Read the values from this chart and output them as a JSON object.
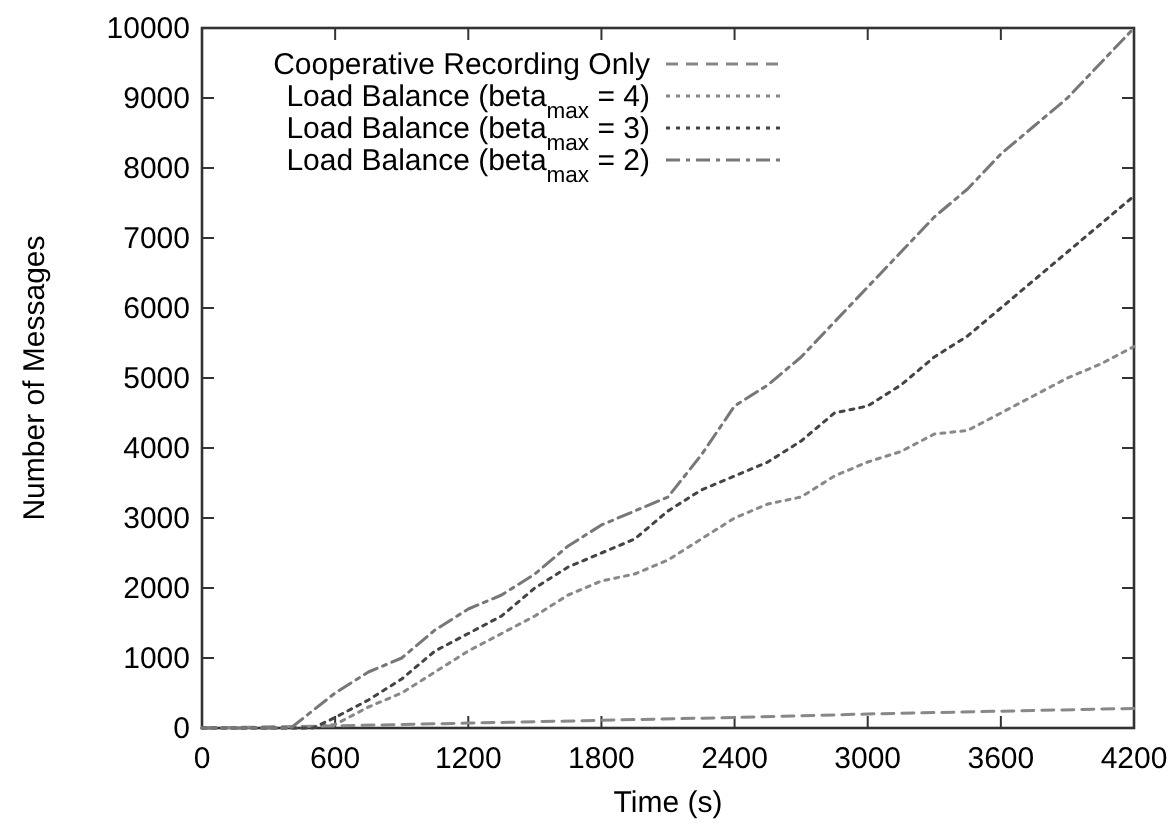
{
  "chart_data": {
    "type": "line",
    "xlabel": "Time (s)",
    "ylabel": "Number of Messages",
    "xlim": [
      0,
      4200
    ],
    "ylim": [
      0,
      10000
    ],
    "xticks": [
      0,
      600,
      1200,
      1800,
      2400,
      3000,
      3600,
      4200
    ],
    "yticks": [
      0,
      1000,
      2000,
      3000,
      4000,
      5000,
      6000,
      7000,
      8000,
      9000,
      10000
    ],
    "grid": false,
    "legend": "top left",
    "marker": "none",
    "series": [
      {
        "name": "Cooperative Recording Only",
        "color": "#888888",
        "line_style": "dashed",
        "x": [
          0,
          600,
          1200,
          1800,
          2400,
          3000,
          3600,
          4200
        ],
        "values": [
          0,
          30,
          70,
          110,
          150,
          200,
          240,
          280
        ]
      },
      {
        "name": "Load Balance (beta$_{max}$ = 4)",
        "color": "#888888",
        "line_style": "dotted",
        "x": [
          0,
          450,
          600,
          750,
          900,
          1050,
          1200,
          1350,
          1500,
          1650,
          1800,
          1950,
          2100,
          2250,
          2400,
          2550,
          2700,
          2850,
          3000,
          3150,
          3300,
          3450,
          3600,
          3750,
          3900,
          4050,
          4200
        ],
        "values": [
          0,
          0,
          50,
          300,
          500,
          800,
          1100,
          1350,
          1600,
          1900,
          2100,
          2200,
          2400,
          2700,
          3000,
          3200,
          3300,
          3600,
          3800,
          3950,
          4200,
          4250,
          4500,
          4750,
          5000,
          5200,
          5450
        ]
      },
      {
        "name": "Load Balance (beta$_{max}$ = 3)",
        "color": "#444444",
        "line_style": "dotted",
        "x": [
          0,
          500,
          600,
          750,
          900,
          1050,
          1200,
          1350,
          1500,
          1650,
          1800,
          1950,
          2100,
          2250,
          2400,
          2550,
          2700,
          2850,
          3000,
          3150,
          3300,
          3450,
          3600,
          3750,
          3900,
          4050,
          4200
        ],
        "values": [
          0,
          0,
          150,
          400,
          700,
          1100,
          1350,
          1600,
          2000,
          2300,
          2500,
          2700,
          3100,
          3400,
          3600,
          3800,
          4100,
          4500,
          4600,
          4900,
          5300,
          5600,
          6000,
          6400,
          6800,
          7200,
          7600
        ]
      },
      {
        "name": "Load Balance (beta$_{max}$ = 2)",
        "color": "#777777",
        "line_style": "dashdot",
        "x": [
          0,
          400,
          600,
          750,
          900,
          1050,
          1200,
          1350,
          1500,
          1650,
          1800,
          1950,
          2100,
          2250,
          2400,
          2550,
          2700,
          2850,
          3000,
          3150,
          3300,
          3450,
          3600,
          3750,
          3900,
          4050,
          4200
        ],
        "values": [
          0,
          0,
          500,
          800,
          1000,
          1400,
          1700,
          1900,
          2200,
          2600,
          2900,
          3100,
          3300,
          3900,
          4600,
          4900,
          5300,
          5800,
          6300,
          6800,
          7300,
          7700,
          8200,
          8600,
          9000,
          9500,
          10000
        ]
      }
    ]
  }
}
